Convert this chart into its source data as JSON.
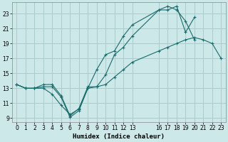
{
  "xlabel": "Humidex (Indice chaleur)",
  "bg_color": "#cde8e8",
  "grid_color": "#aacccc",
  "line_color": "#1a6b6b",
  "x_ticks": [
    0,
    1,
    2,
    3,
    4,
    5,
    6,
    7,
    8,
    9,
    10,
    11,
    12,
    13,
    16,
    17,
    18,
    19,
    20,
    21,
    22,
    23
  ],
  "xlim": [
    -0.5,
    23.5
  ],
  "ylim": [
    8.5,
    24.5
  ],
  "y_ticks": [
    9,
    11,
    13,
    15,
    17,
    19,
    21,
    23
  ],
  "series1_x": [
    0,
    1,
    2,
    3,
    4,
    5,
    6,
    7,
    8,
    9,
    10,
    11,
    12,
    13,
    16,
    17,
    18,
    19,
    20
  ],
  "series1_y": [
    13.5,
    13.0,
    13.0,
    13.0,
    12.2,
    10.7,
    9.5,
    10.2,
    13.0,
    15.5,
    17.5,
    18.0,
    20.0,
    21.5,
    23.5,
    24.0,
    23.5,
    22.0,
    19.5
  ],
  "series2_x": [
    0,
    1,
    2,
    3,
    4,
    5,
    6,
    7,
    8,
    9,
    10,
    11,
    12,
    13,
    16,
    17,
    18,
    19,
    20
  ],
  "series2_y": [
    13.5,
    13.0,
    13.0,
    13.2,
    13.2,
    11.8,
    9.1,
    10.0,
    13.0,
    13.2,
    14.8,
    17.5,
    18.5,
    20.0,
    23.5,
    23.5,
    24.0,
    20.5,
    22.5
  ],
  "series3_x": [
    0,
    1,
    2,
    3,
    4,
    5,
    6,
    7,
    8,
    9,
    10,
    11,
    12,
    13,
    16,
    17,
    18,
    19,
    20,
    21,
    22,
    23
  ],
  "series3_y": [
    13.5,
    13.0,
    13.0,
    13.5,
    13.5,
    12.0,
    9.3,
    10.3,
    13.2,
    13.2,
    13.5,
    14.5,
    15.5,
    16.5,
    18.0,
    18.5,
    19.0,
    19.5,
    19.8,
    19.5,
    19.0,
    17.0
  ]
}
